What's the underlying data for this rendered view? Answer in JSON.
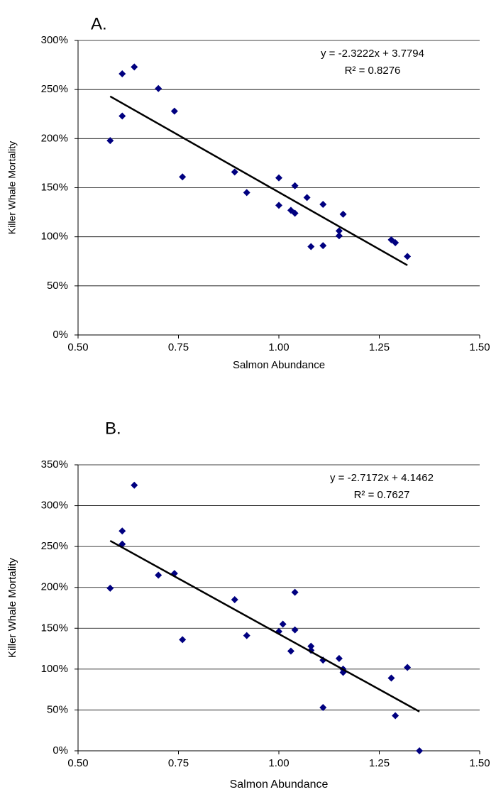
{
  "chart_data": [
    {
      "type": "scatter",
      "title": "A.",
      "xlabel": "Salmon Abundance",
      "ylabel": "Killer Whale Mortality",
      "annotations": [
        "y = -2.3222x + 3.7794",
        "R² = 0.8276"
      ],
      "xlim": [
        0.5,
        1.5
      ],
      "xticks": [
        {
          "value": 0.5,
          "label": "0.50"
        },
        {
          "value": 0.75,
          "label": "0.75"
        },
        {
          "value": 1,
          "label": "1.00"
        },
        {
          "value": 1.25,
          "label": "1.25"
        },
        {
          "value": 1.5,
          "label": "1.50"
        }
      ],
      "ylim": [
        0,
        300
      ],
      "yticks": [
        {
          "value": 0,
          "label": "0%"
        },
        {
          "value": 50,
          "label": "50%"
        },
        {
          "value": 100,
          "label": "100%"
        },
        {
          "value": 150,
          "label": "150%"
        },
        {
          "value": 200,
          "label": "200%"
        },
        {
          "value": 250,
          "label": "250%"
        },
        {
          "value": 300,
          "label": "300%"
        }
      ],
      "grid": true,
      "series": [
        {
          "color": "#000080",
          "x": [
            0.58,
            0.61,
            0.61,
            0.64,
            0.7,
            0.74,
            0.76,
            0.89,
            0.92,
            1.0,
            1.0,
            1.04,
            1.03,
            1.04,
            1.07,
            1.11,
            1.16,
            1.08,
            1.11,
            1.15,
            1.15,
            1.28,
            1.29,
            1.32
          ],
          "values": [
            198,
            266,
            223,
            273,
            251,
            228,
            161,
            166,
            145,
            160,
            132,
            152,
            127,
            124,
            140,
            133,
            123,
            90,
            91,
            106,
            101,
            97,
            94,
            80
          ]
        }
      ],
      "trendline": {
        "color": "#000000",
        "x": [
          0.58,
          1.32
        ],
        "values": [
          243,
          71
        ]
      }
    },
    {
      "type": "scatter",
      "title": "B.",
      "xlabel": "Salmon Abundance",
      "ylabel": "Killer Whale Mortality",
      "annotations": [
        "y = -2.7172x + 4.1462",
        "R² = 0.7627"
      ],
      "xlim": [
        0.5,
        1.5
      ],
      "xticks": [
        {
          "value": 0.5,
          "label": "0.50"
        },
        {
          "value": 0.75,
          "label": "0.75"
        },
        {
          "value": 1,
          "label": "1.00"
        },
        {
          "value": 1.25,
          "label": "1.25"
        },
        {
          "value": 1.5,
          "label": "1.50"
        }
      ],
      "ylim": [
        0,
        350
      ],
      "yticks": [
        {
          "value": 0,
          "label": "0%"
        },
        {
          "value": 50,
          "label": "50%"
        },
        {
          "value": 100,
          "label": "100%"
        },
        {
          "value": 150,
          "label": "150%"
        },
        {
          "value": 200,
          "label": "200%"
        },
        {
          "value": 250,
          "label": "250%"
        },
        {
          "value": 300,
          "label": "300%"
        },
        {
          "value": 350,
          "label": "350%"
        }
      ],
      "grid": true,
      "series": [
        {
          "color": "#000080",
          "x": [
            0.58,
            0.61,
            0.61,
            0.64,
            0.7,
            0.74,
            0.76,
            0.89,
            0.92,
            1.01,
            1.0,
            1.03,
            1.04,
            1.04,
            1.08,
            1.08,
            1.11,
            1.11,
            1.15,
            1.16,
            1.16,
            1.28,
            1.29,
            1.32,
            1.35
          ],
          "values": [
            199,
            269,
            253,
            325,
            215,
            217,
            136,
            185,
            141,
            155,
            146,
            122,
            194,
            148,
            128,
            123,
            111,
            53,
            113,
            96,
            100,
            89,
            43,
            102,
            0
          ]
        }
      ],
      "trendline": {
        "color": "#000000",
        "x": [
          0.58,
          1.35
        ],
        "values": [
          257,
          48
        ]
      }
    }
  ]
}
